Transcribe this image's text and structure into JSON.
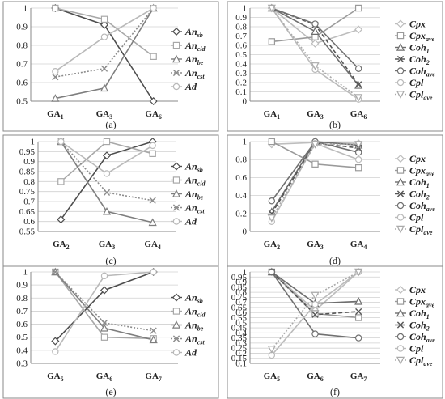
{
  "series_styles": {
    "An_sb": {
      "color": "#4d4d4d",
      "dash": "",
      "marker": "diamond"
    },
    "An_cld": {
      "color": "#a8a8a8",
      "dash": "",
      "marker": "square"
    },
    "An_be": {
      "color": "#7e7e7e",
      "dash": "",
      "marker": "triangle"
    },
    "An_cst": {
      "color": "#8c8c8c",
      "dash": "2,2",
      "marker": "x"
    },
    "Ad": {
      "color": "#b9b9b9",
      "dash": "",
      "marker": "circle"
    },
    "Cpx": {
      "color": "#bdbdbd",
      "dash": "",
      "marker": "diamond"
    },
    "Cpx_ave": {
      "color": "#9a9a9a",
      "dash": "",
      "marker": "square"
    },
    "Coh_1": {
      "color": "#6e6e6e",
      "dash": "",
      "marker": "triangle"
    },
    "Coh_2": {
      "color": "#555555",
      "dash": "5,3",
      "marker": "x"
    },
    "Coh_ave": {
      "color": "#707070",
      "dash": "",
      "marker": "circle"
    },
    "Cpl": {
      "color": "#bbbbbb",
      "dash": "",
      "marker": "circle"
    },
    "Cpl_ave": {
      "color": "#aaaaaa",
      "dash": "2,2",
      "marker": "triangle-down"
    }
  },
  "legend_groups": {
    "an": [
      {
        "key": "An_sb",
        "base": "An",
        "sub": "sb"
      },
      {
        "key": "An_cld",
        "base": "An",
        "sub": "cld"
      },
      {
        "key": "An_be",
        "base": "An",
        "sub": "be"
      },
      {
        "key": "An_cst",
        "base": "An",
        "sub": "cst"
      },
      {
        "key": "Ad",
        "base": "Ad",
        "sub": ""
      }
    ],
    "cpx": [
      {
        "key": "Cpx",
        "base": "Cpx",
        "sub": ""
      },
      {
        "key": "Cpx_ave",
        "base": "Cpx",
        "sub": "ave"
      },
      {
        "key": "Coh_1",
        "base": "Coh",
        "sub": "1"
      },
      {
        "key": "Coh_2",
        "base": "Coh",
        "sub": "2"
      },
      {
        "key": "Coh_ave",
        "base": "Coh",
        "sub": "ave"
      },
      {
        "key": "Cpl",
        "base": "Cpl",
        "sub": ""
      },
      {
        "key": "Cpl_ave",
        "base": "Cpl",
        "sub": "ave"
      }
    ]
  },
  "chart_data": [
    {
      "type": "line",
      "caption": "(a)",
      "legend": "an",
      "categories": [
        {
          "base": "GA",
          "sub": "1"
        },
        {
          "base": "GA",
          "sub": "3"
        },
        {
          "base": "GA",
          "sub": "6"
        }
      ],
      "ylim": [
        0.5,
        1.0
      ],
      "yticks": [
        "0.5",
        "0.6",
        "0.7",
        "0.8",
        "0.9",
        "1"
      ],
      "series": [
        {
          "key": "An_sb",
          "values": [
            1.0,
            0.91,
            0.5
          ]
        },
        {
          "key": "An_cld",
          "values": [
            1.0,
            0.94,
            0.74
          ]
        },
        {
          "key": "An_be",
          "values": [
            0.515,
            0.57,
            1.0
          ]
        },
        {
          "key": "An_cst",
          "values": [
            0.63,
            0.675,
            1.0
          ]
        },
        {
          "key": "Ad",
          "values": [
            0.66,
            0.845,
            1.0
          ]
        }
      ]
    },
    {
      "type": "line",
      "caption": "(b)",
      "legend": "cpx",
      "categories": [
        {
          "base": "GA",
          "sub": "1"
        },
        {
          "base": "GA",
          "sub": "3"
        },
        {
          "base": "GA",
          "sub": "6"
        }
      ],
      "ylim": [
        0,
        1
      ],
      "yticks": [
        "0",
        "0.1",
        "0.2",
        "0.3",
        "0.4",
        "0.5",
        "0.6",
        "0.7",
        "0.8",
        "0.9",
        "1"
      ],
      "series": [
        {
          "key": "Cpx",
          "values": [
            1.0,
            0.62,
            0.77
          ]
        },
        {
          "key": "Cpx_ave",
          "values": [
            0.64,
            0.69,
            1.0
          ]
        },
        {
          "key": "Coh_1",
          "values": [
            1.0,
            0.75,
            0.17
          ]
        },
        {
          "key": "Coh_2",
          "values": [
            1.0,
            0.82,
            0.18
          ]
        },
        {
          "key": "Coh_ave",
          "values": [
            1.0,
            0.83,
            0.35
          ]
        },
        {
          "key": "Cpl",
          "values": [
            1.0,
            0.34,
            0.02
          ]
        },
        {
          "key": "Cpl_ave",
          "values": [
            1.0,
            0.38,
            0.04
          ]
        }
      ]
    },
    {
      "type": "line",
      "caption": "(c)",
      "legend": "an",
      "categories": [
        {
          "base": "GA",
          "sub": "2"
        },
        {
          "base": "GA",
          "sub": "3"
        },
        {
          "base": "GA",
          "sub": "4"
        }
      ],
      "ylim": [
        0.55,
        1.0
      ],
      "yticks": [
        "0.55",
        "0.6",
        "0.65",
        "0.7",
        "0.75",
        "0.8",
        "0.85",
        "0.9",
        "0.95",
        "1"
      ],
      "series": [
        {
          "key": "An_sb",
          "values": [
            0.61,
            0.93,
            1.0
          ]
        },
        {
          "key": "An_cld",
          "values": [
            0.8,
            1.0,
            0.94
          ]
        },
        {
          "key": "An_be",
          "values": [
            1.0,
            0.65,
            0.595
          ]
        },
        {
          "key": "An_cst",
          "values": [
            1.0,
            0.745,
            0.705
          ]
        },
        {
          "key": "Ad",
          "values": [
            1.0,
            0.84,
            0.98
          ]
        }
      ]
    },
    {
      "type": "line",
      "caption": "(d)",
      "legend": "cpx",
      "categories": [
        {
          "base": "GA",
          "sub": "2"
        },
        {
          "base": "GA",
          "sub": "3"
        },
        {
          "base": "GA",
          "sub": "4"
        }
      ],
      "ylim": [
        0,
        1
      ],
      "yticks": [
        "0",
        "0.2",
        "0.4",
        "0.6",
        "0.8",
        "1"
      ],
      "series": [
        {
          "key": "Cpx",
          "values": [
            0.97,
            0.99,
            0.98
          ]
        },
        {
          "key": "Cpx_ave",
          "values": [
            1.0,
            0.75,
            0.71
          ]
        },
        {
          "key": "Coh_1",
          "values": [
            0.22,
            1.0,
            0.96
          ]
        },
        {
          "key": "Coh_2",
          "values": [
            0.2,
            0.98,
            0.93
          ]
        },
        {
          "key": "Coh_ave",
          "values": [
            0.34,
            1.0,
            0.88
          ]
        },
        {
          "key": "Cpl",
          "values": [
            0.11,
            0.98,
            0.8
          ]
        },
        {
          "key": "Cpl_ave",
          "values": [
            0.15,
            0.97,
            0.97
          ]
        }
      ]
    },
    {
      "type": "line",
      "caption": "(e)",
      "legend": "an",
      "categories": [
        {
          "base": "GA",
          "sub": "5"
        },
        {
          "base": "GA",
          "sub": "6"
        },
        {
          "base": "GA",
          "sub": "7"
        }
      ],
      "ylim": [
        0.3,
        1.0
      ],
      "yticks": [
        "0.3",
        "0.4",
        "0.5",
        "0.6",
        "0.7",
        "0.8",
        "0.9",
        "1"
      ],
      "series": [
        {
          "key": "An_sb",
          "values": [
            0.47,
            0.86,
            1.0
          ]
        },
        {
          "key": "An_cld",
          "values": [
            1.0,
            0.5,
            0.49
          ]
        },
        {
          "key": "An_be",
          "values": [
            1.0,
            0.57,
            0.48
          ]
        },
        {
          "key": "An_cst",
          "values": [
            1.0,
            0.61,
            0.55
          ]
        },
        {
          "key": "Ad",
          "values": [
            0.39,
            0.97,
            1.0
          ]
        }
      ]
    },
    {
      "type": "line",
      "caption": "(f)",
      "legend": "cpx",
      "categories": [
        {
          "base": "GA",
          "sub": "5"
        },
        {
          "base": "GA",
          "sub": "6"
        },
        {
          "base": "GA",
          "sub": "7"
        }
      ],
      "ylim": [
        0.1,
        1.0
      ],
      "yticks": [
        "0.1",
        "0.15",
        "0.2",
        "0.25",
        "0.3",
        "0.35",
        "0.4",
        "0.45",
        "0.5",
        "0.55",
        "0.6",
        "0.65",
        "0.7",
        "0.75",
        "0.8",
        "0.85",
        "0.9",
        "0.95",
        "1"
      ],
      "series": [
        {
          "key": "Cpx",
          "values": [
            1.0,
            0.62,
            1.0
          ]
        },
        {
          "key": "Cpx_ave",
          "values": [
            1.0,
            0.59,
            0.55
          ]
        },
        {
          "key": "Coh_1",
          "values": [
            1.0,
            0.69,
            0.71
          ]
        },
        {
          "key": "Coh_2",
          "values": [
            1.0,
            0.58,
            0.61
          ]
        },
        {
          "key": "Coh_ave",
          "values": [
            1.0,
            0.39,
            0.35
          ]
        },
        {
          "key": "Cpl",
          "values": [
            0.18,
            0.68,
            1.0
          ]
        },
        {
          "key": "Cpl_ave",
          "values": [
            0.24,
            0.77,
            1.0
          ]
        }
      ]
    }
  ]
}
